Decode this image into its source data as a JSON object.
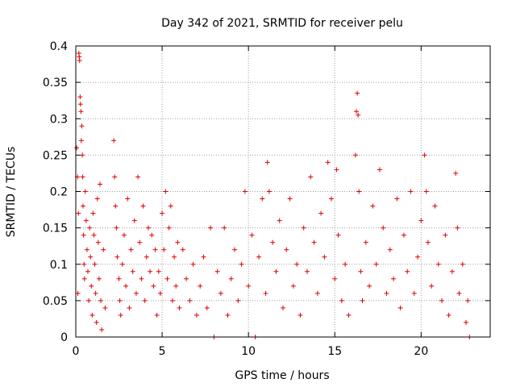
{
  "chart_data": {
    "type": "scatter",
    "title": "Day 342 of 2021, SRMTID for receiver pelu",
    "xlabel": "GPS time / hours",
    "ylabel": "SRMTID / TECUs",
    "xlim": [
      0,
      24
    ],
    "ylim": [
      0,
      0.4
    ],
    "xticks": [
      0,
      5,
      10,
      15,
      20
    ],
    "yticks": [
      0,
      0.05,
      0.1,
      0.15,
      0.2,
      0.25,
      0.3,
      0.35,
      0.4
    ],
    "grid": true,
    "marker": "+",
    "color": "#e00000",
    "series": [
      {
        "name": "SRMTID",
        "points": [
          [
            0.05,
            0.26
          ],
          [
            0.1,
            0.22
          ],
          [
            0.12,
            0.06
          ],
          [
            0.15,
            0.17
          ],
          [
            0.18,
            0.39
          ],
          [
            0.2,
            0.385
          ],
          [
            0.22,
            0.38
          ],
          [
            0.25,
            0.33
          ],
          [
            0.27,
            0.32
          ],
          [
            0.3,
            0.31
          ],
          [
            0.32,
            0.27
          ],
          [
            0.35,
            0.29
          ],
          [
            0.38,
            0.25
          ],
          [
            0.4,
            0.22
          ],
          [
            0.42,
            0.18
          ],
          [
            0.45,
            0.14
          ],
          [
            0.48,
            0.1
          ],
          [
            0.5,
            0.08
          ],
          [
            0.55,
            0.2
          ],
          [
            0.6,
            0.16
          ],
          [
            0.65,
            0.12
          ],
          [
            0.7,
            0.09
          ],
          [
            0.75,
            0.05
          ],
          [
            0.8,
            0.15
          ],
          [
            0.85,
            0.11
          ],
          [
            0.9,
            0.07
          ],
          [
            0.95,
            0.03
          ],
          [
            1.0,
            0.17
          ],
          [
            1.05,
            0.14
          ],
          [
            1.1,
            0.1
          ],
          [
            1.15,
            0.06
          ],
          [
            1.2,
            0.02
          ],
          [
            1.25,
            0.19
          ],
          [
            1.3,
            0.13
          ],
          [
            1.35,
            0.08
          ],
          [
            1.4,
            0.21
          ],
          [
            1.45,
            0.05
          ],
          [
            1.5,
            0.01
          ],
          [
            1.6,
            0.12
          ],
          [
            1.7,
            0.04
          ],
          [
            2.2,
            0.27
          ],
          [
            2.25,
            0.22
          ],
          [
            2.3,
            0.18
          ],
          [
            2.35,
            0.15
          ],
          [
            2.4,
            0.11
          ],
          [
            2.5,
            0.08
          ],
          [
            2.55,
            0.05
          ],
          [
            2.6,
            0.03
          ],
          [
            2.7,
            0.1
          ],
          [
            2.8,
            0.14
          ],
          [
            2.9,
            0.07
          ],
          [
            3.0,
            0.19
          ],
          [
            3.1,
            0.04
          ],
          [
            3.2,
            0.12
          ],
          [
            3.3,
            0.09
          ],
          [
            3.4,
            0.16
          ],
          [
            3.5,
            0.06
          ],
          [
            3.6,
            0.22
          ],
          [
            3.7,
            0.13
          ],
          [
            3.8,
            0.08
          ],
          [
            3.9,
            0.18
          ],
          [
            4.0,
            0.05
          ],
          [
            4.1,
            0.11
          ],
          [
            4.2,
            0.15
          ],
          [
            4.3,
            0.09
          ],
          [
            4.4,
            0.14
          ],
          [
            4.5,
            0.07
          ],
          [
            4.6,
            0.12
          ],
          [
            4.7,
            0.03
          ],
          [
            4.8,
            0.09
          ],
          [
            4.9,
            0.06
          ],
          [
            5.0,
            0.17
          ],
          [
            5.1,
            0.12
          ],
          [
            5.2,
            0.2
          ],
          [
            5.3,
            0.08
          ],
          [
            5.4,
            0.15
          ],
          [
            5.5,
            0.18
          ],
          [
            5.6,
            0.05
          ],
          [
            5.7,
            0.11
          ],
          [
            5.8,
            0.07
          ],
          [
            5.9,
            0.13
          ],
          [
            6.0,
            0.04
          ],
          [
            6.2,
            0.12
          ],
          [
            6.4,
            0.08
          ],
          [
            6.6,
            0.05
          ],
          [
            6.8,
            0.1
          ],
          [
            7.0,
            0.03
          ],
          [
            7.2,
            0.07
          ],
          [
            7.4,
            0.11
          ],
          [
            7.6,
            0.04
          ],
          [
            7.8,
            0.15
          ],
          [
            8.0,
            0.0
          ],
          [
            8.2,
            0.09
          ],
          [
            8.4,
            0.06
          ],
          [
            8.6,
            0.15
          ],
          [
            8.8,
            0.03
          ],
          [
            9.0,
            0.08
          ],
          [
            9.2,
            0.12
          ],
          [
            9.4,
            0.05
          ],
          [
            9.6,
            0.1
          ],
          [
            9.8,
            0.2
          ],
          [
            10.0,
            0.07
          ],
          [
            10.2,
            0.14
          ],
          [
            10.4,
            0.0
          ],
          [
            10.6,
            0.11
          ],
          [
            10.8,
            0.19
          ],
          [
            11.0,
            0.06
          ],
          [
            11.1,
            0.24
          ],
          [
            11.2,
            0.2
          ],
          [
            11.4,
            0.13
          ],
          [
            11.6,
            0.09
          ],
          [
            11.8,
            0.16
          ],
          [
            12.0,
            0.04
          ],
          [
            12.2,
            0.12
          ],
          [
            12.4,
            0.19
          ],
          [
            12.6,
            0.07
          ],
          [
            12.8,
            0.1
          ],
          [
            13.0,
            0.03
          ],
          [
            13.2,
            0.15
          ],
          [
            13.4,
            0.09
          ],
          [
            13.6,
            0.22
          ],
          [
            13.8,
            0.13
          ],
          [
            14.0,
            0.06
          ],
          [
            14.2,
            0.17
          ],
          [
            14.4,
            0.11
          ],
          [
            14.6,
            0.24
          ],
          [
            14.8,
            0.19
          ],
          [
            15.0,
            0.08
          ],
          [
            15.1,
            0.23
          ],
          [
            15.2,
            0.14
          ],
          [
            15.4,
            0.05
          ],
          [
            15.6,
            0.1
          ],
          [
            15.8,
            0.03
          ],
          [
            16.2,
            0.25
          ],
          [
            16.25,
            0.31
          ],
          [
            16.3,
            0.335
          ],
          [
            16.35,
            0.305
          ],
          [
            16.4,
            0.2
          ],
          [
            16.5,
            0.09
          ],
          [
            16.6,
            0.05
          ],
          [
            16.8,
            0.13
          ],
          [
            17.0,
            0.07
          ],
          [
            17.2,
            0.18
          ],
          [
            17.4,
            0.1
          ],
          [
            17.6,
            0.23
          ],
          [
            17.8,
            0.15
          ],
          [
            18.0,
            0.06
          ],
          [
            18.2,
            0.12
          ],
          [
            18.4,
            0.08
          ],
          [
            18.6,
            0.19
          ],
          [
            18.8,
            0.04
          ],
          [
            19.0,
            0.14
          ],
          [
            19.2,
            0.09
          ],
          [
            19.4,
            0.2
          ],
          [
            19.6,
            0.06
          ],
          [
            19.8,
            0.11
          ],
          [
            20.0,
            0.16
          ],
          [
            20.2,
            0.25
          ],
          [
            20.3,
            0.2
          ],
          [
            20.4,
            0.13
          ],
          [
            20.6,
            0.07
          ],
          [
            20.8,
            0.18
          ],
          [
            21.0,
            0.1
          ],
          [
            21.2,
            0.05
          ],
          [
            21.4,
            0.14
          ],
          [
            21.6,
            0.03
          ],
          [
            21.8,
            0.09
          ],
          [
            22.0,
            0.225
          ],
          [
            22.1,
            0.15
          ],
          [
            22.2,
            0.06
          ],
          [
            22.4,
            0.1
          ],
          [
            22.6,
            0.02
          ],
          [
            22.7,
            0.05
          ],
          [
            22.8,
            0.0
          ]
        ]
      }
    ]
  }
}
